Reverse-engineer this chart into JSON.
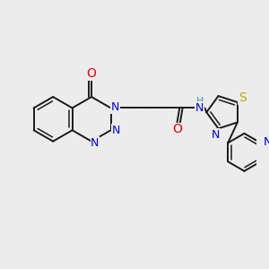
{
  "bg_color": "#ececec",
  "bond_color": "#1a1a1a",
  "bond_width": 1.4,
  "atom_colors": {
    "N": "#0000ee",
    "O": "#ee0000",
    "S": "#bbaa00",
    "H": "#339999"
  },
  "font_size": 8.5,
  "fig_size": [
    3.0,
    3.0
  ],
  "dpi": 100
}
